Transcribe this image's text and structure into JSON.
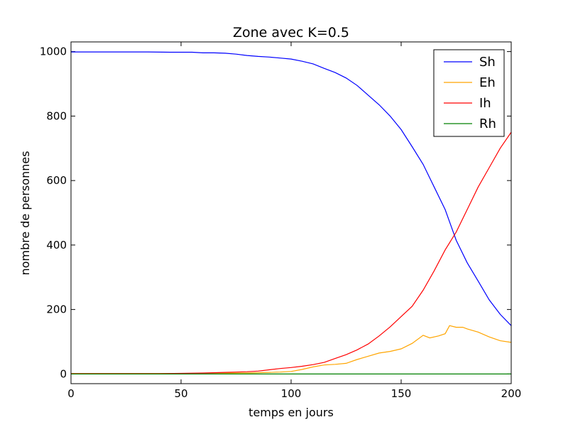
{
  "colors": {
    "Sh": "#0000ff",
    "Eh": "#ffa500",
    "Ih": "#ff0000",
    "Rh": "#008000"
  },
  "chart_data": {
    "type": "line",
    "title": "Zone avec K=0.5",
    "xlabel": "temps en jours",
    "ylabel": "nombre de personnes",
    "xlim": [
      0,
      200
    ],
    "ylim": [
      -30,
      1030
    ],
    "xticks": [
      0,
      50,
      100,
      150,
      200
    ],
    "yticks": [
      0,
      200,
      400,
      600,
      800,
      1000
    ],
    "grid": false,
    "legend_position": "top-right",
    "series": [
      {
        "name": "Sh",
        "color": "#0000ff",
        "x": [
          0,
          20,
          35,
          45,
          50,
          55,
          60,
          65,
          70,
          75,
          80,
          85,
          90,
          95,
          100,
          105,
          110,
          115,
          120,
          125,
          130,
          135,
          140,
          145,
          150,
          155,
          160,
          165,
          170,
          175,
          180,
          185,
          190,
          195,
          200
        ],
        "y": [
          999,
          999,
          999,
          998,
          998,
          998,
          996,
          996,
          995,
          992,
          988,
          985,
          983,
          980,
          977,
          970,
          962,
          948,
          935,
          918,
          895,
          865,
          835,
          800,
          758,
          705,
          650,
          580,
          510,
          415,
          345,
          288,
          230,
          185,
          150
        ]
      },
      {
        "name": "Eh",
        "color": "#ffa500",
        "x": [
          0,
          20,
          40,
          60,
          80,
          90,
          95,
          100,
          105,
          110,
          115,
          120,
          125,
          130,
          135,
          140,
          145,
          150,
          155,
          160,
          163,
          167,
          170,
          172,
          175,
          178,
          180,
          185,
          190,
          195,
          200
        ],
        "y": [
          1,
          1,
          1,
          2,
          3,
          5,
          6,
          8,
          14,
          22,
          28,
          30,
          33,
          45,
          55,
          65,
          70,
          78,
          95,
          120,
          112,
          118,
          125,
          150,
          145,
          145,
          140,
          130,
          115,
          103,
          98
        ]
      },
      {
        "name": "Ih",
        "color": "#ff0000",
        "x": [
          0,
          20,
          40,
          50,
          60,
          70,
          75,
          80,
          85,
          90,
          95,
          100,
          105,
          110,
          115,
          120,
          125,
          130,
          135,
          140,
          145,
          150,
          155,
          160,
          165,
          170,
          175,
          180,
          185,
          190,
          195,
          200
        ],
        "y": [
          1,
          1,
          1,
          2,
          3,
          5,
          6,
          7,
          9,
          13,
          17,
          20,
          24,
          29,
          36,
          48,
          60,
          75,
          93,
          118,
          146,
          178,
          210,
          260,
          320,
          385,
          440,
          510,
          580,
          640,
          700,
          750
        ]
      },
      {
        "name": "Rh",
        "color": "#008000",
        "x": [
          0,
          200
        ],
        "y": [
          0,
          0
        ]
      }
    ]
  }
}
